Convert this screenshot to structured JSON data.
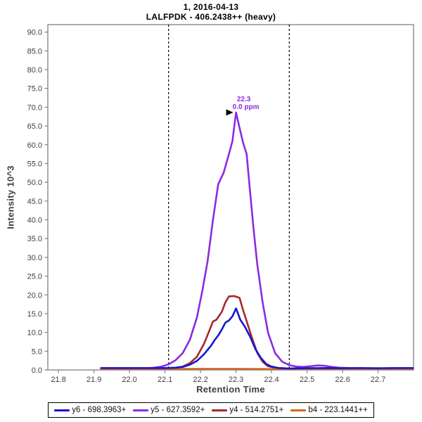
{
  "title": {
    "line1": "1, 2016-04-13",
    "line2": "LALFPDK - 406.2438++ (heavy)"
  },
  "chart_data": {
    "type": "line",
    "title": "1, 2016-04-13",
    "subtitle": "LALFPDK - 406.2438++ (heavy)",
    "xlabel": "Retention Time",
    "ylabel": "Intensity 10^3",
    "xlim": [
      21.77,
      22.8
    ],
    "ylim": [
      0,
      92
    ],
    "grid": false,
    "legend_position": "bottom",
    "x_ticks": [
      "21.8",
      "21.9",
      "22.0",
      "22.1",
      "22.2",
      "22.3",
      "22.4",
      "22.5",
      "22.6",
      "22.7"
    ],
    "y_ticks": [
      "0.0",
      "5.0",
      "10.0",
      "15.0",
      "20.0",
      "25.0",
      "30.0",
      "35.0",
      "40.0",
      "45.0",
      "50.0",
      "55.0",
      "60.0",
      "65.0",
      "70.0",
      "75.0",
      "80.0",
      "85.0",
      "90.0"
    ],
    "peak_boundaries": [
      22.11,
      22.45
    ],
    "boundary_style": "dashed-black",
    "annotation": {
      "rt_label": "22.3",
      "ppm_label": "0.0 ppm",
      "x": 22.3,
      "y": 68.6,
      "color": "#8a2be2",
      "arrow": "black-right-triangle"
    },
    "axis_color": "#808080",
    "draw_order": [
      "y5",
      "y4",
      "b4",
      "y6"
    ],
    "series": [
      {
        "key": "y6",
        "name": "y6 - 698.3963+",
        "color": "#1616d2",
        "points": [
          [
            21.92,
            0.5
          ],
          [
            22.0,
            0.5
          ],
          [
            22.05,
            0.5
          ],
          [
            22.1,
            0.5
          ],
          [
            22.13,
            0.6
          ],
          [
            22.15,
            0.8
          ],
          [
            22.17,
            1.4
          ],
          [
            22.19,
            2.4
          ],
          [
            22.21,
            4.2
          ],
          [
            22.23,
            6.5
          ],
          [
            22.24,
            8.0
          ],
          [
            22.25,
            9.2
          ],
          [
            22.26,
            10.8
          ],
          [
            22.27,
            12.6
          ],
          [
            22.28,
            13.2
          ],
          [
            22.29,
            14.3
          ],
          [
            22.3,
            16.4
          ],
          [
            22.312,
            13.4
          ],
          [
            22.325,
            11.5
          ],
          [
            22.34,
            8.8
          ],
          [
            22.355,
            5.5
          ],
          [
            22.37,
            3.2
          ],
          [
            22.385,
            1.6
          ],
          [
            22.4,
            0.9
          ],
          [
            22.42,
            0.5
          ],
          [
            22.45,
            0.4
          ],
          [
            22.5,
            0.45
          ],
          [
            22.55,
            0.5
          ],
          [
            22.6,
            0.45
          ],
          [
            22.65,
            0.5
          ],
          [
            22.7,
            0.45
          ],
          [
            22.75,
            0.5
          ],
          [
            22.8,
            0.5
          ]
        ]
      },
      {
        "key": "y5",
        "name": "y5 - 627.3592+",
        "color": "#8a2be2",
        "points": [
          [
            21.92,
            0.3
          ],
          [
            21.96,
            0.3
          ],
          [
            22.0,
            0.3
          ],
          [
            22.04,
            0.4
          ],
          [
            22.07,
            0.6
          ],
          [
            22.09,
            0.9
          ],
          [
            22.11,
            1.5
          ],
          [
            22.13,
            2.6
          ],
          [
            22.15,
            4.5
          ],
          [
            22.17,
            8
          ],
          [
            22.19,
            14
          ],
          [
            22.205,
            21
          ],
          [
            22.22,
            29
          ],
          [
            22.235,
            40
          ],
          [
            22.25,
            49.5
          ],
          [
            22.265,
            52.5
          ],
          [
            22.28,
            57.5
          ],
          [
            22.29,
            61
          ],
          [
            22.3,
            68.6
          ],
          [
            22.31,
            64.5
          ],
          [
            22.32,
            60.5
          ],
          [
            22.33,
            57.5
          ],
          [
            22.34,
            47
          ],
          [
            22.35,
            37
          ],
          [
            22.36,
            28
          ],
          [
            22.375,
            18
          ],
          [
            22.39,
            10
          ],
          [
            22.41,
            4.5
          ],
          [
            22.43,
            2.2
          ],
          [
            22.45,
            1.3
          ],
          [
            22.47,
            0.9
          ],
          [
            22.49,
            0.8
          ],
          [
            22.51,
            1.0
          ],
          [
            22.53,
            1.2
          ],
          [
            22.55,
            1.1
          ],
          [
            22.57,
            0.8
          ],
          [
            22.59,
            0.6
          ],
          [
            22.62,
            0.5
          ],
          [
            22.66,
            0.4
          ],
          [
            22.7,
            0.35
          ],
          [
            22.75,
            0.3
          ],
          [
            22.8,
            0.3
          ]
        ]
      },
      {
        "key": "y4",
        "name": "y4 - 514.2751+",
        "color": "#a52a2a",
        "points": [
          [
            21.92,
            0.3
          ],
          [
            22.0,
            0.3
          ],
          [
            22.05,
            0.3
          ],
          [
            22.1,
            0.4
          ],
          [
            22.13,
            0.6
          ],
          [
            22.15,
            0.9
          ],
          [
            22.17,
            1.8
          ],
          [
            22.19,
            3.5
          ],
          [
            22.21,
            7
          ],
          [
            22.225,
            10.5
          ],
          [
            22.235,
            12.9
          ],
          [
            22.245,
            13.4
          ],
          [
            22.26,
            15.5
          ],
          [
            22.27,
            18
          ],
          [
            22.28,
            19.6
          ],
          [
            22.295,
            19.7
          ],
          [
            22.31,
            19.2
          ],
          [
            22.32,
            15.9
          ],
          [
            22.33,
            13
          ],
          [
            22.345,
            8.5
          ],
          [
            22.36,
            4.5
          ],
          [
            22.375,
            2.2
          ],
          [
            22.39,
            1.0
          ],
          [
            22.41,
            0.6
          ],
          [
            22.44,
            0.4
          ],
          [
            22.47,
            0.3
          ],
          [
            22.52,
            0.3
          ],
          [
            22.58,
            0.25
          ],
          [
            22.65,
            0.25
          ],
          [
            22.72,
            0.25
          ],
          [
            22.8,
            0.25
          ]
        ]
      },
      {
        "key": "b4",
        "name": "b4 - 223.1441++",
        "color": "#d2691e",
        "points": [
          [
            21.92,
            0.2
          ],
          [
            22.0,
            0.2
          ],
          [
            22.1,
            0.25
          ],
          [
            22.2,
            0.3
          ],
          [
            22.3,
            0.3
          ],
          [
            22.4,
            0.25
          ],
          [
            22.5,
            0.2
          ],
          [
            22.6,
            0.2
          ],
          [
            22.7,
            0.2
          ],
          [
            22.8,
            0.2
          ]
        ]
      }
    ]
  }
}
